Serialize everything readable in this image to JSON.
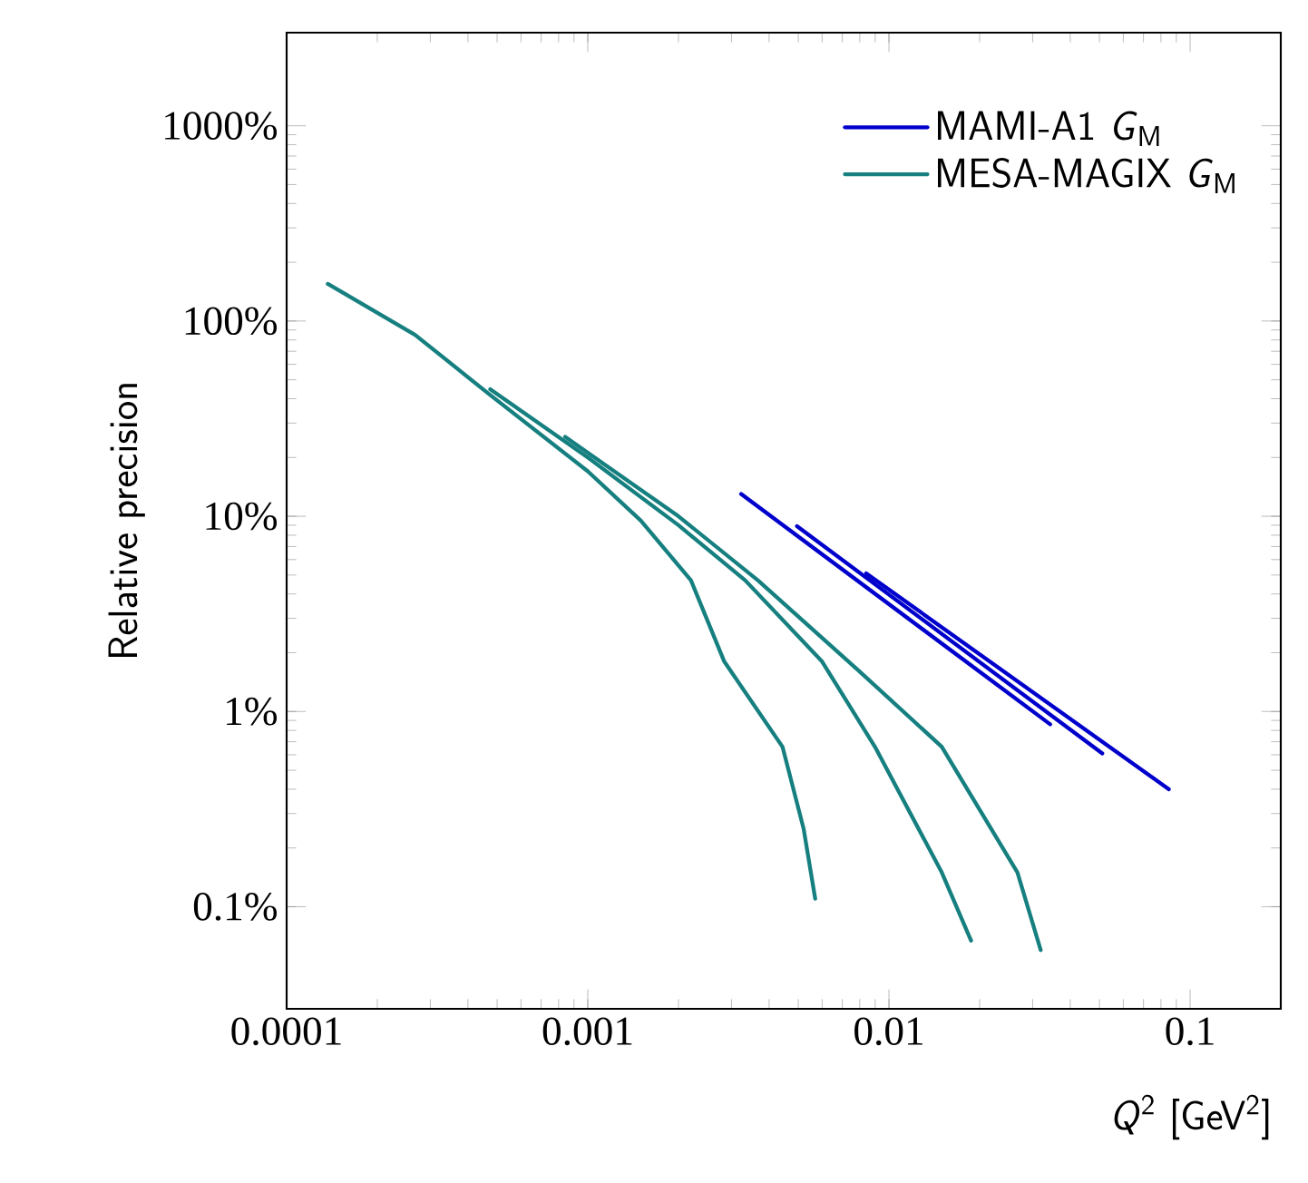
{
  "chart_data": {
    "type": "line",
    "xlabel": "*Q*$^{2}$ [GeV$^{2}$]",
    "ylabel": "Relative precision",
    "log": "xy",
    "xlim": [
      0.0001,
      0.2
    ],
    "ylim": [
      0.03,
      3000
    ],
    "xticks": [
      0.0001,
      0.001,
      0.01,
      0.1
    ],
    "yticks": [
      {
        "value": 0.1,
        "label": "0.1%"
      },
      {
        "value": 1,
        "label": "1%"
      },
      {
        "value": 10,
        "label": "10%"
      },
      {
        "value": 100,
        "label": "100%"
      },
      {
        "value": 1000,
        "label": "1000%"
      }
    ],
    "grid": false,
    "legend": "top right",
    "marker": "none",
    "line_style": "solid",
    "series": [
      {
        "name": "MAMI-A1 *G*$_{M}$",
        "color": "#0000cc",
        "x": [
          0.00323,
          0.0343
        ],
        "values": [
          13.0,
          0.86
        ]
      },
      {
        "color": "#0000cc",
        "x": [
          0.00495,
          0.0511
        ],
        "values": [
          8.9,
          0.61
        ]
      },
      {
        "color": "#0000cc",
        "x": [
          0.0084,
          0.085
        ],
        "values": [
          5.1,
          0.4
        ]
      },
      {
        "name": "MESA-MAGIX *G*$_{M}$",
        "color": "#167f7f",
        "x": [
          0.000137,
          0.000267,
          0.000472,
          0.001,
          0.0015,
          0.0022,
          0.00284,
          0.00443,
          0.00521,
          0.00569
        ],
        "values": [
          155,
          85,
          42,
          17,
          9.5,
          4.7,
          1.8,
          0.66,
          0.25,
          0.11
        ]
      },
      {
        "color": "#167f7f",
        "x": [
          0.000474,
          0.001,
          0.002,
          0.00333,
          0.006,
          0.00898,
          0.01497,
          0.01874
        ],
        "values": [
          44.7,
          20,
          9,
          4.7,
          1.8,
          0.66,
          0.15,
          0.067
        ]
      },
      {
        "color": "#167f7f",
        "x": [
          0.000841,
          0.002,
          0.00367,
          0.008,
          0.01497,
          0.0267,
          0.0319
        ],
        "values": [
          25.5,
          10,
          4.7,
          1.6,
          0.66,
          0.15,
          0.06
        ]
      }
    ]
  }
}
